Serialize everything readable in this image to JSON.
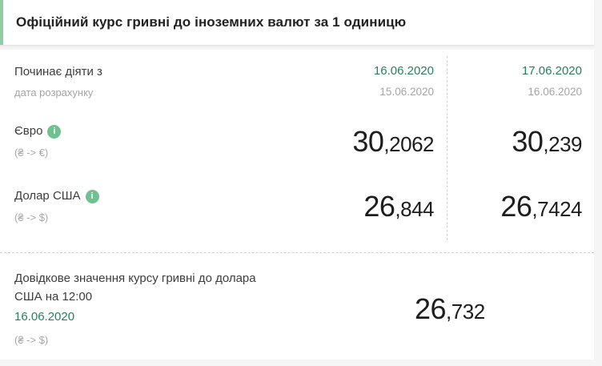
{
  "header": {
    "title": "Офіційний курс гривні до іноземних валют за 1 одиницю"
  },
  "rates": {
    "header_row": {
      "label": "Починає діяти з",
      "sublabel": "дата розрахунку",
      "columns": [
        {
          "effective_date": "16.06.2020",
          "calculation_date": "15.06.2020"
        },
        {
          "effective_date": "17.06.2020",
          "calculation_date": "16.06.2020"
        }
      ]
    },
    "currencies": [
      {
        "name": "Євро",
        "pair": "(₴ -> €)",
        "values": [
          {
            "int": "30",
            "frac": ",2062"
          },
          {
            "int": "30",
            "frac": ",239"
          }
        ]
      },
      {
        "name": "Долар США",
        "pair": "(₴ -> $)",
        "values": [
          {
            "int": "26",
            "frac": ",844"
          },
          {
            "int": "26",
            "frac": ",7424"
          }
        ]
      }
    ]
  },
  "reference": {
    "title_line1": "Довідкове значення курсу гривні до долара",
    "title_line2": "США на 12:00",
    "date": "16.06.2020",
    "pair": "(₴ -> $)",
    "value": {
      "int": "26",
      "frac": ",732"
    }
  },
  "icons": {
    "info_glyph": "i"
  },
  "colors": {
    "accent_green": "#26805c",
    "info_icon_green": "#6fc28f",
    "header_accent_bar": "#8ecda6",
    "text_dark": "#3c3c3c",
    "text_gray": "#a5a5a5",
    "number_dark": "#1d1d1d",
    "page_background": "#f5f5f5",
    "card_background": "#ffffff"
  }
}
